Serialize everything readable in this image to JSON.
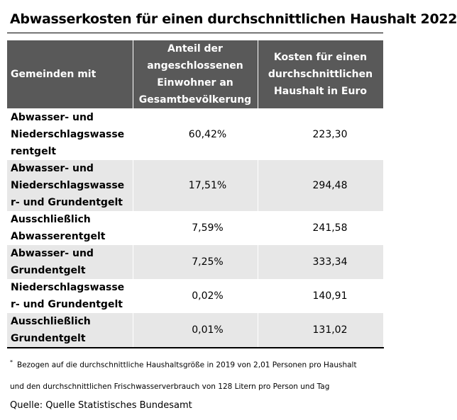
{
  "title": "Abwasserkosten für einen durchschnittlichen Haushalt 2022",
  "table": {
    "headers": [
      "Gemeinden mit",
      "Anteil der angeschlossenen Einwohner an Gesamtbevölkerung",
      "Kosten für einen durchschnittlichen Haushalt in Euro"
    ],
    "rows": [
      [
        "Abwasser- und Niederschlagswasserentgelt",
        "60,42%",
        "223,30"
      ],
      [
        "Abwasser- und Niederschlagswasser- und Grundentgelt",
        "17,51%",
        "294,48"
      ],
      [
        "Ausschließlich Abwasserentgelt",
        "7,59%",
        "241,58"
      ],
      [
        "Abwasser- und Grundentgelt",
        "7,25%",
        "333,34"
      ],
      [
        "Niederschlagswasser- und Grundentgelt",
        "0,02%",
        "140,91"
      ],
      [
        "Ausschließlich Grundentgelt",
        "0,01%",
        "131,02"
      ]
    ]
  },
  "footnote": {
    "marker": "*",
    "lines": [
      "Bezogen auf die durchschnittliche Haushaltsgröße in 2019 von 2,01 Personen pro Haushalt",
      "und den durchschnittlichen Frischwasserverbrauch von 128 Litern pro Person und Tag"
    ]
  },
  "source": "Quelle: Quelle Statistisches Bundesamt"
}
